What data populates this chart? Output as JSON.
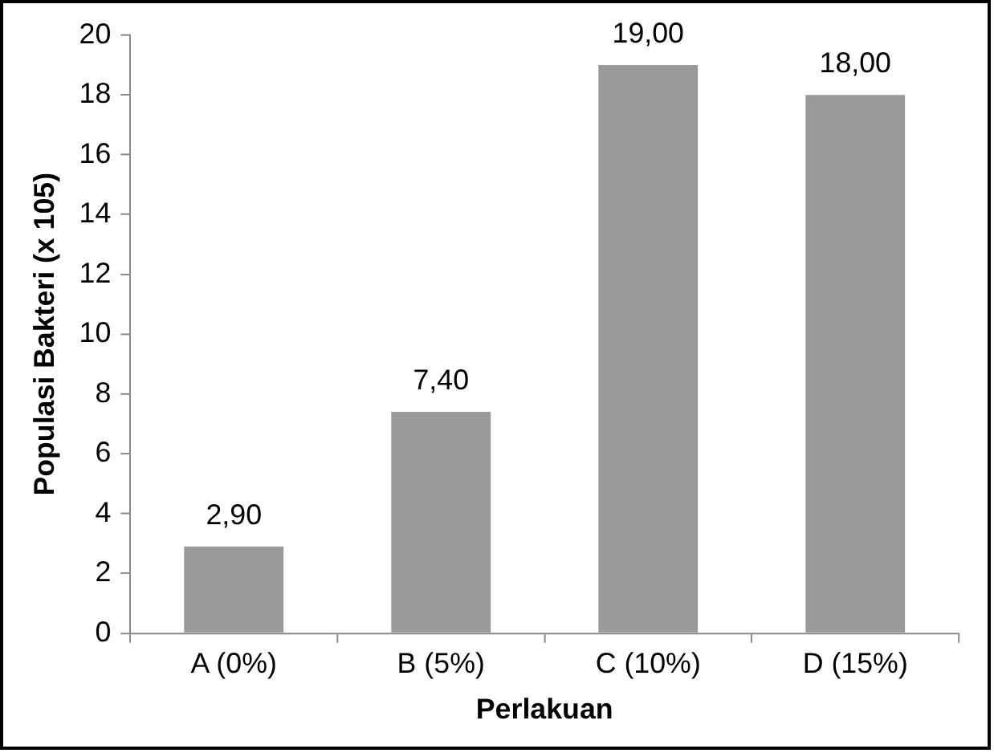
{
  "chart_data": {
    "type": "bar",
    "xlabel": "Perlakuan",
    "ylabel": "Populasi Bakteri (x 105)",
    "categories": [
      "A (0%)",
      "B (5%)",
      "C (10%)",
      "D (15%)"
    ],
    "values": [
      2.9,
      7.4,
      19,
      18
    ],
    "value_labels": [
      "2,90",
      "7,40",
      "19,00",
      "18,00"
    ],
    "color": "#9a9a9a",
    "ylim": [
      0,
      20
    ],
    "yticks": [
      0,
      2,
      4,
      6,
      8,
      10,
      12,
      14,
      16,
      18,
      20
    ],
    "grid": false,
    "legend": false
  }
}
